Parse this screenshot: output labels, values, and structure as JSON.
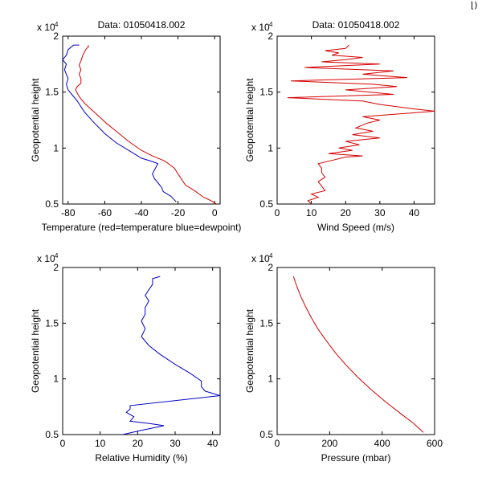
{
  "window": {
    "corner_glyph": "⌊)"
  },
  "colors": {
    "axis": "#000000",
    "red": "#d40000",
    "blue": "#0000c0"
  },
  "chart_data": [
    {
      "id": "temperature",
      "type": "line",
      "title": "Data: 01050418.002",
      "exponent_base": "x 10",
      "exponent_power": "4",
      "xlabel": "Temperature (red=temperature blue=dewpoint)",
      "ylabel": "Geopotential height",
      "xlim": [
        -83,
        3
      ],
      "ylim": [
        5000,
        20000
      ],
      "xticks": [
        -80,
        -60,
        -40,
        -20,
        0
      ],
      "xtick_labels": [
        "-80",
        "-60",
        "-40",
        "-20",
        "0"
      ],
      "yticks": [
        5000,
        10000,
        15000,
        20000
      ],
      "ytick_labels": [
        "0.5",
        "1",
        "1.5",
        "2"
      ],
      "series": [
        {
          "name": "temperature",
          "color": "red",
          "points": [
            [
              1,
              5000
            ],
            [
              -2,
              5300
            ],
            [
              -6,
              5600
            ],
            [
              -11,
              6200
            ],
            [
              -16,
              6700
            ],
            [
              -18,
              7200
            ],
            [
              -20,
              7700
            ],
            [
              -22,
              8200
            ],
            [
              -26,
              8700
            ],
            [
              -28,
              8900
            ],
            [
              -34,
              9300
            ],
            [
              -40,
              9800
            ],
            [
              -47,
              10600
            ],
            [
              -53,
              11400
            ],
            [
              -59,
              12200
            ],
            [
              -63,
              12800
            ],
            [
              -67,
              13400
            ],
            [
              -71,
              14000
            ],
            [
              -74,
              14600
            ],
            [
              -76,
              15200
            ],
            [
              -75,
              15500
            ],
            [
              -73,
              15800
            ],
            [
              -73,
              16200
            ],
            [
              -74,
              16600
            ],
            [
              -73,
              17000
            ],
            [
              -74,
              17400
            ],
            [
              -73,
              17800
            ],
            [
              -72,
              18300
            ],
            [
              -71,
              18600
            ],
            [
              -70,
              18900
            ],
            [
              -69,
              19000
            ],
            [
              -69,
              19200
            ]
          ]
        },
        {
          "name": "dewpoint",
          "color": "blue",
          "points": [
            [
              -21,
              5200
            ],
            [
              -24,
              5700
            ],
            [
              -28,
              6100
            ],
            [
              -29,
              6500
            ],
            [
              -31,
              6900
            ],
            [
              -33,
              7300
            ],
            [
              -34,
              7700
            ],
            [
              -32,
              8300
            ],
            [
              -31,
              8600
            ],
            [
              -34,
              8800
            ],
            [
              -40,
              9100
            ],
            [
              -47,
              9800
            ],
            [
              -54,
              10500
            ],
            [
              -60,
              11300
            ],
            [
              -66,
              12300
            ],
            [
              -71,
              13200
            ],
            [
              -75,
              14200
            ],
            [
              -78,
              14800
            ],
            [
              -80,
              15200
            ],
            [
              -81,
              15700
            ],
            [
              -80,
              16200
            ],
            [
              -81,
              16600
            ],
            [
              -82,
              17000
            ],
            [
              -81,
              17500
            ],
            [
              -83,
              17900
            ],
            [
              -81,
              18300
            ],
            [
              -80,
              18800
            ],
            [
              -77,
              19200
            ],
            [
              -74,
              19200
            ]
          ]
        }
      ]
    },
    {
      "id": "wind",
      "type": "line",
      "title": "Data: 01050418.002",
      "exponent_base": "x 10",
      "exponent_power": "4",
      "xlabel": "Wind Speed (m/s)",
      "ylabel": "Geopotential height",
      "xlim": [
        0,
        46
      ],
      "ylim": [
        5000,
        20000
      ],
      "xticks": [
        0,
        10,
        20,
        30,
        40
      ],
      "xtick_labels": [
        "0",
        "10",
        "20",
        "30",
        "40"
      ],
      "yticks": [
        5000,
        10000,
        15000,
        20000
      ],
      "ytick_labels": [
        "0.5",
        "1",
        "1.5",
        "2"
      ],
      "series": [
        {
          "name": "wind speed",
          "color": "red",
          "points": [
            [
              10,
              5000
            ],
            [
              9,
              5300
            ],
            [
              12,
              5600
            ],
            [
              10,
              5900
            ],
            [
              14,
              6200
            ],
            [
              13,
              6600
            ],
            [
              12,
              7000
            ],
            [
              14,
              7400
            ],
            [
              13,
              7800
            ],
            [
              13,
              8200
            ],
            [
              12,
              8600
            ],
            [
              16,
              8900
            ],
            [
              20,
              9200
            ],
            [
              25,
              9300
            ],
            [
              15,
              9500
            ],
            [
              22,
              9800
            ],
            [
              18,
              10000
            ],
            [
              24,
              10300
            ],
            [
              20,
              10600
            ],
            [
              30,
              10900
            ],
            [
              22,
              11200
            ],
            [
              28,
              11500
            ],
            [
              23,
              11800
            ],
            [
              26,
              12200
            ],
            [
              30,
              12500
            ],
            [
              25,
              12800
            ],
            [
              46,
              13300
            ],
            [
              40,
              13500
            ],
            [
              30,
              13900
            ],
            [
              25,
              14200
            ],
            [
              3,
              14500
            ],
            [
              34,
              14800
            ],
            [
              20,
              15200
            ],
            [
              35,
              15500
            ],
            [
              28,
              15700
            ],
            [
              4,
              16000
            ],
            [
              38,
              16300
            ],
            [
              25,
              16600
            ],
            [
              34,
              16900
            ],
            [
              8,
              17200
            ],
            [
              30,
              17500
            ],
            [
              13,
              17700
            ],
            [
              20,
              17900
            ],
            [
              25,
              18100
            ],
            [
              16,
              18300
            ],
            [
              18,
              18500
            ],
            [
              14,
              18700
            ],
            [
              20,
              18900
            ],
            [
              21,
              19200
            ]
          ]
        }
      ]
    },
    {
      "id": "humidity",
      "type": "line",
      "title": "",
      "exponent_base": "x 10",
      "exponent_power": "4",
      "xlabel": "Relative Humidity (%)",
      "ylabel": "Geopotential height",
      "xlim": [
        0,
        42
      ],
      "ylim": [
        5000,
        20000
      ],
      "xticks": [
        0,
        10,
        20,
        30,
        40
      ],
      "xtick_labels": [
        "0",
        "10",
        "20",
        "30",
        "40"
      ],
      "yticks": [
        5000,
        10000,
        15000,
        20000
      ],
      "ytick_labels": [
        "0.5",
        "1",
        "1.5",
        "2"
      ],
      "series": [
        {
          "name": "relative humidity",
          "color": "blue",
          "points": [
            [
              16,
              5000
            ],
            [
              20,
              5300
            ],
            [
              27,
              5800
            ],
            [
              23,
              6000
            ],
            [
              18,
              6200
            ],
            [
              19,
              6600
            ],
            [
              17,
              7000
            ],
            [
              18,
              7300
            ],
            [
              18,
              7600
            ],
            [
              42,
              8500
            ],
            [
              38,
              8900
            ],
            [
              37,
              9300
            ],
            [
              37,
              9800
            ],
            [
              34,
              10500
            ],
            [
              30,
              11300
            ],
            [
              26,
              12200
            ],
            [
              23,
              13000
            ],
            [
              21,
              13800
            ],
            [
              22,
              14500
            ],
            [
              21,
              15200
            ],
            [
              22,
              15800
            ],
            [
              22,
              16400
            ],
            [
              23,
              17000
            ],
            [
              22,
              17500
            ],
            [
              23,
              18000
            ],
            [
              24,
              18500
            ],
            [
              24,
              19000
            ],
            [
              26,
              19200
            ]
          ]
        }
      ]
    },
    {
      "id": "pressure",
      "type": "line",
      "title": "",
      "exponent_base": "x 10",
      "exponent_power": "4",
      "xlabel": "Pressure (mbar)",
      "ylabel": "Geopotential height",
      "xlim": [
        0,
        600
      ],
      "ylim": [
        5000,
        20000
      ],
      "xticks": [
        0,
        200,
        400,
        600
      ],
      "xtick_labels": [
        "0",
        "200",
        "400",
        "600"
      ],
      "yticks": [
        5000,
        10000,
        15000,
        20000
      ],
      "ytick_labels": [
        "0.5",
        "1",
        "1.5",
        "2"
      ],
      "series": [
        {
          "name": "pressure",
          "color": "red",
          "points": [
            [
              62,
              19200
            ],
            [
              75,
              18300
            ],
            [
              90,
              17400
            ],
            [
              108,
              16500
            ],
            [
              130,
              15500
            ],
            [
              155,
              14500
            ],
            [
              185,
              13500
            ],
            [
              220,
              12400
            ],
            [
              260,
              11300
            ],
            [
              305,
              10200
            ],
            [
              355,
              9100
            ],
            [
              410,
              8000
            ],
            [
              470,
              6900
            ],
            [
              520,
              6000
            ],
            [
              557,
              5200
            ]
          ]
        }
      ]
    }
  ]
}
